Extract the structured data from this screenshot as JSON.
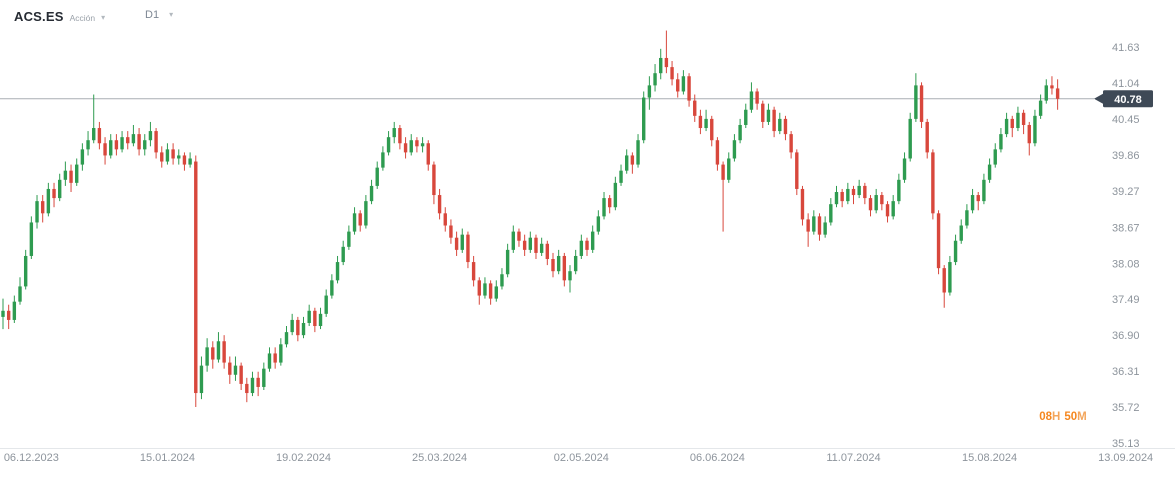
{
  "header": {
    "symbol": "ACS.ES",
    "instrument_type": "Acción",
    "timeframe": "D1"
  },
  "price_marker": {
    "value": "40.78"
  },
  "countdown": {
    "hours": "08",
    "hours_unit": "H",
    "minutes": "50",
    "minutes_unit": "M"
  },
  "colors": {
    "bull": "#2e9b50",
    "bear": "#d8473c",
    "current_price_line": "#a9aeb4",
    "price_tag_bg": "#3e4956",
    "price_tag_text": "#ffffff",
    "axis_text": "#8d949c",
    "axis_line": "#e4e7ea",
    "countdown_orange": "#f5871f"
  },
  "chart_data": {
    "type": "candlestick",
    "title": "ACS.ES Acción daily (D1) candlestick chart",
    "symbol": "ACS.ES",
    "timeframe": "D1",
    "current_price": 40.78,
    "candle_close_countdown": "08H 50M",
    "grid": "off",
    "legend": "none",
    "ylim": [
      35.13,
      41.93
    ],
    "y_ticks": [
      41.63,
      41.04,
      40.45,
      39.86,
      39.27,
      38.67,
      38.08,
      37.49,
      36.9,
      36.31,
      35.72,
      35.13
    ],
    "x_tick_labels": [
      "06.12.2023",
      "15.01.2024",
      "19.02.2024",
      "25.03.2024",
      "02.05.2024",
      "06.06.2024",
      "11.07.2024",
      "15.08.2024",
      "13.09.2024"
    ],
    "x_tick_candle_indices": [
      5,
      29,
      53,
      77,
      102,
      126,
      150,
      174,
      198
    ],
    "candles_ohlc": [
      [
        37.2,
        37.5,
        37.0,
        37.3
      ],
      [
        37.3,
        37.4,
        37.0,
        37.15
      ],
      [
        37.15,
        37.55,
        37.1,
        37.45
      ],
      [
        37.45,
        37.85,
        37.4,
        37.7
      ],
      [
        37.7,
        38.3,
        37.65,
        38.2
      ],
      [
        38.2,
        38.85,
        38.15,
        38.75
      ],
      [
        38.75,
        39.2,
        38.65,
        39.1
      ],
      [
        39.1,
        39.2,
        38.75,
        38.9
      ],
      [
        38.9,
        39.4,
        38.85,
        39.3
      ],
      [
        39.3,
        39.4,
        39.0,
        39.15
      ],
      [
        39.15,
        39.55,
        39.1,
        39.45
      ],
      [
        39.45,
        39.75,
        39.35,
        39.6
      ],
      [
        39.6,
        39.7,
        39.25,
        39.4
      ],
      [
        39.4,
        39.8,
        39.35,
        39.7
      ],
      [
        39.7,
        40.05,
        39.6,
        39.95
      ],
      [
        39.95,
        40.25,
        39.85,
        40.1
      ],
      [
        40.1,
        40.85,
        40.05,
        40.3
      ],
      [
        40.3,
        40.4,
        39.95,
        40.05
      ],
      [
        40.05,
        40.15,
        39.7,
        39.85
      ],
      [
        39.85,
        40.2,
        39.8,
        40.1
      ],
      [
        40.1,
        40.2,
        39.85,
        39.95
      ],
      [
        39.95,
        40.25,
        39.9,
        40.15
      ],
      [
        40.15,
        40.25,
        39.95,
        40.05
      ],
      [
        40.05,
        40.35,
        40.0,
        40.2
      ],
      [
        40.2,
        40.3,
        39.85,
        39.95
      ],
      [
        39.95,
        40.2,
        39.85,
        40.1
      ],
      [
        40.1,
        40.4,
        40.0,
        40.25
      ],
      [
        40.25,
        40.3,
        39.8,
        39.9
      ],
      [
        39.9,
        40.0,
        39.65,
        39.75
      ],
      [
        39.75,
        40.05,
        39.7,
        39.95
      ],
      [
        39.95,
        40.05,
        39.7,
        39.8
      ],
      [
        39.8,
        39.95,
        39.7,
        39.85
      ],
      [
        39.85,
        39.9,
        39.6,
        39.7
      ],
      [
        39.7,
        39.9,
        39.65,
        39.8
      ],
      [
        39.75,
        39.85,
        35.72,
        35.95
      ],
      [
        35.95,
        36.55,
        35.85,
        36.4
      ],
      [
        36.4,
        36.85,
        36.3,
        36.7
      ],
      [
        36.7,
        36.8,
        36.35,
        36.5
      ],
      [
        36.5,
        36.95,
        36.45,
        36.8
      ],
      [
        36.8,
        36.9,
        36.35,
        36.45
      ],
      [
        36.45,
        36.55,
        36.1,
        36.25
      ],
      [
        36.25,
        36.55,
        36.15,
        36.4
      ],
      [
        36.4,
        36.45,
        36.0,
        36.1
      ],
      [
        36.1,
        36.2,
        35.8,
        35.95
      ],
      [
        35.95,
        36.3,
        35.9,
        36.2
      ],
      [
        36.2,
        36.3,
        35.9,
        36.05
      ],
      [
        36.05,
        36.45,
        36.0,
        36.35
      ],
      [
        36.35,
        36.7,
        36.3,
        36.6
      ],
      [
        36.6,
        36.7,
        36.35,
        36.45
      ],
      [
        36.45,
        36.85,
        36.4,
        36.75
      ],
      [
        36.75,
        37.05,
        36.7,
        36.95
      ],
      [
        36.95,
        37.25,
        36.9,
        37.15
      ],
      [
        37.15,
        37.2,
        36.8,
        36.9
      ],
      [
        36.9,
        37.2,
        36.85,
        37.1
      ],
      [
        37.1,
        37.4,
        37.05,
        37.3
      ],
      [
        37.3,
        37.35,
        36.95,
        37.05
      ],
      [
        37.05,
        37.35,
        37.0,
        37.25
      ],
      [
        37.25,
        37.65,
        37.2,
        37.55
      ],
      [
        37.55,
        37.9,
        37.5,
        37.8
      ],
      [
        37.8,
        38.2,
        37.75,
        38.1
      ],
      [
        38.1,
        38.45,
        38.05,
        38.35
      ],
      [
        38.35,
        38.7,
        38.3,
        38.6
      ],
      [
        38.6,
        39.0,
        38.55,
        38.9
      ],
      [
        38.9,
        38.95,
        38.6,
        38.7
      ],
      [
        38.7,
        39.2,
        38.65,
        39.1
      ],
      [
        39.1,
        39.45,
        39.05,
        39.35
      ],
      [
        39.35,
        39.75,
        39.3,
        39.65
      ],
      [
        39.65,
        40.0,
        39.6,
        39.9
      ],
      [
        39.9,
        40.25,
        39.85,
        40.15
      ],
      [
        40.15,
        40.4,
        40.05,
        40.3
      ],
      [
        40.3,
        40.35,
        39.95,
        40.05
      ],
      [
        40.05,
        40.15,
        39.8,
        39.9
      ],
      [
        39.9,
        40.2,
        39.85,
        40.1
      ],
      [
        40.1,
        40.15,
        39.9,
        40.0
      ],
      [
        40.0,
        40.15,
        39.9,
        40.05
      ],
      [
        40.05,
        40.1,
        39.6,
        39.7
      ],
      [
        39.7,
        39.75,
        39.05,
        39.2
      ],
      [
        39.2,
        39.3,
        38.8,
        38.9
      ],
      [
        38.9,
        39.0,
        38.6,
        38.7
      ],
      [
        38.7,
        38.8,
        38.4,
        38.5
      ],
      [
        38.5,
        38.6,
        38.2,
        38.3
      ],
      [
        38.3,
        38.65,
        38.25,
        38.55
      ],
      [
        38.55,
        38.6,
        38.0,
        38.1
      ],
      [
        38.1,
        38.2,
        37.7,
        37.8
      ],
      [
        37.8,
        37.85,
        37.4,
        37.55
      ],
      [
        37.55,
        37.85,
        37.5,
        37.75
      ],
      [
        37.75,
        37.8,
        37.4,
        37.5
      ],
      [
        37.5,
        37.8,
        37.45,
        37.7
      ],
      [
        37.7,
        38.0,
        37.65,
        37.9
      ],
      [
        37.9,
        38.4,
        37.85,
        38.3
      ],
      [
        38.3,
        38.7,
        38.25,
        38.6
      ],
      [
        38.6,
        38.65,
        38.35,
        38.45
      ],
      [
        38.45,
        38.55,
        38.2,
        38.3
      ],
      [
        38.3,
        38.6,
        38.25,
        38.5
      ],
      [
        38.5,
        38.55,
        38.15,
        38.25
      ],
      [
        38.25,
        38.5,
        38.2,
        38.4
      ],
      [
        38.4,
        38.45,
        38.05,
        38.15
      ],
      [
        38.15,
        38.25,
        37.85,
        37.95
      ],
      [
        37.95,
        38.3,
        37.9,
        38.2
      ],
      [
        38.2,
        38.25,
        37.7,
        37.8
      ],
      [
        37.8,
        38.05,
        37.6,
        37.95
      ],
      [
        37.95,
        38.3,
        37.9,
        38.2
      ],
      [
        38.2,
        38.55,
        38.15,
        38.45
      ],
      [
        38.45,
        38.5,
        38.2,
        38.3
      ],
      [
        38.3,
        38.7,
        38.25,
        38.6
      ],
      [
        38.6,
        38.95,
        38.55,
        38.85
      ],
      [
        38.85,
        39.25,
        38.8,
        39.15
      ],
      [
        39.15,
        39.2,
        38.9,
        39.0
      ],
      [
        39.0,
        39.5,
        38.95,
        39.4
      ],
      [
        39.4,
        39.7,
        39.35,
        39.6
      ],
      [
        39.6,
        39.95,
        39.55,
        39.85
      ],
      [
        39.85,
        39.9,
        39.55,
        39.7
      ],
      [
        39.7,
        40.2,
        39.65,
        40.1
      ],
      [
        40.1,
        40.9,
        40.05,
        40.8
      ],
      [
        40.8,
        41.15,
        40.6,
        41.0
      ],
      [
        41.0,
        41.35,
        40.9,
        41.2
      ],
      [
        41.2,
        41.6,
        41.1,
        41.45
      ],
      [
        41.45,
        41.9,
        41.2,
        41.3
      ],
      [
        41.3,
        41.4,
        41.0,
        41.1
      ],
      [
        41.1,
        41.2,
        40.8,
        40.9
      ],
      [
        40.9,
        41.25,
        40.85,
        41.15
      ],
      [
        41.15,
        41.2,
        40.65,
        40.75
      ],
      [
        40.75,
        40.85,
        40.4,
        40.5
      ],
      [
        40.5,
        40.6,
        40.2,
        40.3
      ],
      [
        40.3,
        40.6,
        40.25,
        40.45
      ],
      [
        40.45,
        40.5,
        40.0,
        40.1
      ],
      [
        40.1,
        40.15,
        39.6,
        39.7
      ],
      [
        39.7,
        39.75,
        38.6,
        39.45
      ],
      [
        39.45,
        39.9,
        39.4,
        39.8
      ],
      [
        39.8,
        40.2,
        39.75,
        40.1
      ],
      [
        40.1,
        40.45,
        40.05,
        40.35
      ],
      [
        40.35,
        40.7,
        40.3,
        40.6
      ],
      [
        40.6,
        41.05,
        40.55,
        40.9
      ],
      [
        40.9,
        40.95,
        40.6,
        40.7
      ],
      [
        40.7,
        40.75,
        40.3,
        40.4
      ],
      [
        40.4,
        40.7,
        40.35,
        40.6
      ],
      [
        40.6,
        40.65,
        40.15,
        40.25
      ],
      [
        40.25,
        40.55,
        40.2,
        40.45
      ],
      [
        40.45,
        40.5,
        40.1,
        40.2
      ],
      [
        40.2,
        40.25,
        39.8,
        39.9
      ],
      [
        39.9,
        39.95,
        39.2,
        39.3
      ],
      [
        39.3,
        39.35,
        38.7,
        38.8
      ],
      [
        38.8,
        38.9,
        38.35,
        38.6
      ],
      [
        38.6,
        38.95,
        38.55,
        38.85
      ],
      [
        38.85,
        38.9,
        38.45,
        38.55
      ],
      [
        38.55,
        38.85,
        38.5,
        38.75
      ],
      [
        38.75,
        39.15,
        38.7,
        39.05
      ],
      [
        39.05,
        39.35,
        39.0,
        39.25
      ],
      [
        39.25,
        39.3,
        39.0,
        39.1
      ],
      [
        39.1,
        39.4,
        39.05,
        39.3
      ],
      [
        39.3,
        39.35,
        39.05,
        39.2
      ],
      [
        39.2,
        39.45,
        39.15,
        39.35
      ],
      [
        39.35,
        39.4,
        39.05,
        39.15
      ],
      [
        39.15,
        39.2,
        38.85,
        38.95
      ],
      [
        38.95,
        39.3,
        38.9,
        39.2
      ],
      [
        39.2,
        39.25,
        38.95,
        39.05
      ],
      [
        39.05,
        39.1,
        38.75,
        38.85
      ],
      [
        38.85,
        39.2,
        38.8,
        39.1
      ],
      [
        39.1,
        39.55,
        39.05,
        39.45
      ],
      [
        39.45,
        39.9,
        39.4,
        39.8
      ],
      [
        39.8,
        40.55,
        39.75,
        40.45
      ],
      [
        40.45,
        41.2,
        40.4,
        41.0
      ],
      [
        41.0,
        41.05,
        40.3,
        40.4
      ],
      [
        40.4,
        40.45,
        39.8,
        39.9
      ],
      [
        39.9,
        39.95,
        38.8,
        38.9
      ],
      [
        38.9,
        38.95,
        37.9,
        38.0
      ],
      [
        38.0,
        38.05,
        37.35,
        37.6
      ],
      [
        37.6,
        38.2,
        37.55,
        38.1
      ],
      [
        38.1,
        38.55,
        38.05,
        38.45
      ],
      [
        38.45,
        38.8,
        38.4,
        38.7
      ],
      [
        38.7,
        39.05,
        38.65,
        38.95
      ],
      [
        38.95,
        39.3,
        38.9,
        39.2
      ],
      [
        39.2,
        39.25,
        38.95,
        39.1
      ],
      [
        39.1,
        39.55,
        39.05,
        39.45
      ],
      [
        39.45,
        39.8,
        39.4,
        39.7
      ],
      [
        39.7,
        40.05,
        39.65,
        39.95
      ],
      [
        39.95,
        40.3,
        39.9,
        40.2
      ],
      [
        40.2,
        40.55,
        40.15,
        40.45
      ],
      [
        40.45,
        40.5,
        40.15,
        40.3
      ],
      [
        40.3,
        40.65,
        40.25,
        40.55
      ],
      [
        40.55,
        40.6,
        40.2,
        40.35
      ],
      [
        40.35,
        40.4,
        39.85,
        40.05
      ],
      [
        40.05,
        40.6,
        40.0,
        40.5
      ],
      [
        40.5,
        40.85,
        40.45,
        40.75
      ],
      [
        40.75,
        41.1,
        40.7,
        41.0
      ],
      [
        41.0,
        41.15,
        40.85,
        40.95
      ],
      [
        40.95,
        41.1,
        40.6,
        40.78
      ]
    ]
  }
}
